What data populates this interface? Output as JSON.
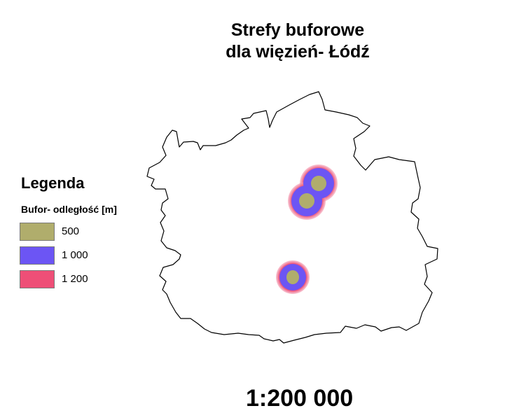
{
  "title": {
    "line1": "Strefy buforowe",
    "line2": "dla więzień- Łódź"
  },
  "legend": {
    "title": "Legenda",
    "subtitle": "Bufor- odległość [m]",
    "items": [
      {
        "label": "500",
        "color": "#b0ad6c"
      },
      {
        "label": "1 000",
        "color": "#6c55f4"
      },
      {
        "label": "1 200",
        "color": "#ee4f77"
      }
    ]
  },
  "scale": "1:200 000"
}
